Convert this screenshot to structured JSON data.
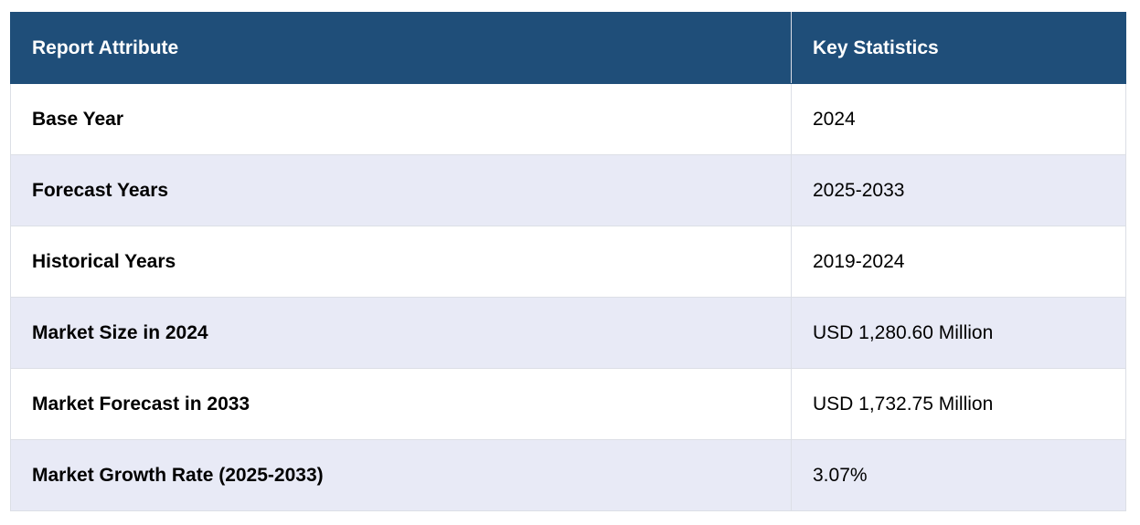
{
  "table": {
    "headers": {
      "attribute": "Report Attribute",
      "statistics": "Key Statistics"
    },
    "rows": [
      {
        "attribute": "Base Year",
        "value": "2024"
      },
      {
        "attribute": "Forecast Years",
        "value": "2025-2033"
      },
      {
        "attribute": "Historical Years",
        "value": "2019-2024"
      },
      {
        "attribute": "Market Size in 2024",
        "value": "USD 1,280.60 Million"
      },
      {
        "attribute": "Market Forecast in 2033",
        "value": "USD 1,732.75 Million"
      },
      {
        "attribute": "Market Growth Rate (2025-2033)",
        "value": "3.07%"
      }
    ],
    "colors": {
      "header_bg": "#1f4e79",
      "header_text": "#ffffff",
      "stripe_bg": "#e8eaf6"
    }
  }
}
